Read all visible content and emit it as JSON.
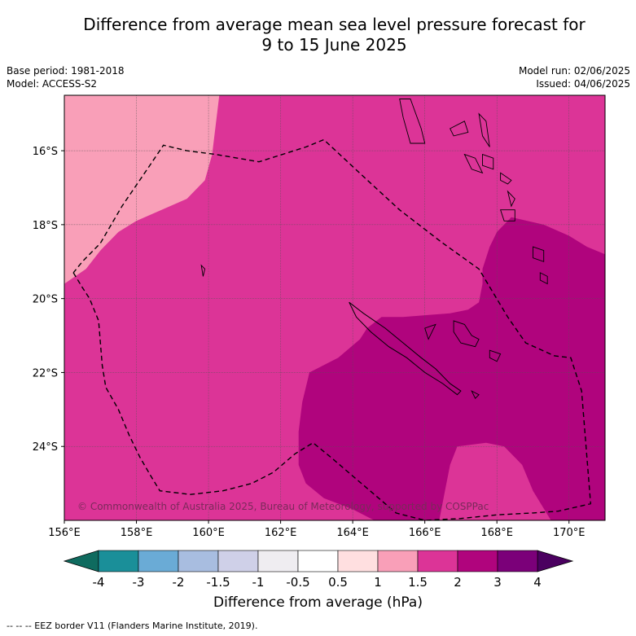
{
  "title_line1": "Difference from average mean sea level pressure forecast for",
  "title_line2": "9 to 15 June 2025",
  "meta": {
    "base_period": "Base period: 1981-2018",
    "model": "Model: ACCESS-S2",
    "model_run": "Model run: 02/06/2025",
    "issued": "Issued: 04/06/2025"
  },
  "map": {
    "lon_range": [
      156,
      171
    ],
    "lat_range": [
      -26.0,
      -14.5
    ],
    "lon_ticks": [
      {
        "v": 156,
        "label": "156°E"
      },
      {
        "v": 158,
        "label": "158°E"
      },
      {
        "v": 160,
        "label": "160°E"
      },
      {
        "v": 162,
        "label": "162°E"
      },
      {
        "v": 164,
        "label": "164°E"
      },
      {
        "v": 166,
        "label": "166°E"
      },
      {
        "v": 168,
        "label": "168°E"
      },
      {
        "v": 170,
        "label": "170°E"
      }
    ],
    "lat_ticks": [
      {
        "v": -16,
        "label": "16°S"
      },
      {
        "v": -18,
        "label": "18°S"
      },
      {
        "v": -20,
        "label": "20°S"
      },
      {
        "v": -22,
        "label": "22°S"
      },
      {
        "v": -24,
        "label": "24°S"
      }
    ],
    "gridlines": true,
    "copyright": "© Commonwealth of Australia 2025, Bureau of Meteorology, supported by COSPPac",
    "regions": [
      {
        "range": "1 to 1.5",
        "color": "#f99fb8",
        "points": [
          [
            156,
            -14.5
          ],
          [
            160.3,
            -14.5
          ],
          [
            160.1,
            -16.1
          ],
          [
            159.9,
            -16.8
          ],
          [
            159.4,
            -17.3
          ],
          [
            158.0,
            -17.9
          ],
          [
            157.5,
            -18.2
          ],
          [
            157.0,
            -18.7
          ],
          [
            156.6,
            -19.2
          ],
          [
            156,
            -19.6
          ]
        ]
      },
      {
        "range": "2 to 3",
        "color": "#b0047d",
        "points": [
          [
            168.4,
            -17.8
          ],
          [
            169.3,
            -18.0
          ],
          [
            170.0,
            -18.3
          ],
          [
            170.5,
            -18.6
          ],
          [
            171,
            -18.8
          ],
          [
            171,
            -26.0
          ],
          [
            169.5,
            -26.0
          ],
          [
            169.0,
            -25.2
          ],
          [
            168.7,
            -24.5
          ],
          [
            168.2,
            -24.0
          ],
          [
            167.7,
            -23.9
          ],
          [
            166.9,
            -24.0
          ],
          [
            166.7,
            -24.5
          ],
          [
            166.6,
            -25.0
          ],
          [
            166.5,
            -25.5
          ],
          [
            166.4,
            -26.0
          ],
          [
            164.6,
            -26.0
          ],
          [
            164.0,
            -25.7
          ],
          [
            163.2,
            -25.4
          ],
          [
            162.7,
            -25.0
          ],
          [
            162.5,
            -24.5
          ],
          [
            162.5,
            -23.6
          ],
          [
            162.6,
            -22.8
          ],
          [
            162.8,
            -22.0
          ],
          [
            163.6,
            -21.6
          ],
          [
            164.2,
            -21.1
          ],
          [
            164.4,
            -20.8
          ],
          [
            164.8,
            -20.5
          ],
          [
            165.4,
            -20.5
          ],
          [
            166.0,
            -20.45
          ],
          [
            166.7,
            -20.4
          ],
          [
            167.2,
            -20.3
          ],
          [
            167.5,
            -20.1
          ],
          [
            167.6,
            -19.6
          ],
          [
            167.6,
            -19.2
          ],
          [
            167.8,
            -18.6
          ],
          [
            168.0,
            -18.2
          ]
        ]
      }
    ],
    "eez_border": [
      [
        156.25,
        -19.3
      ],
      [
        156.5,
        -19.7
      ],
      [
        156.7,
        -20.0
      ],
      [
        156.95,
        -20.6
      ],
      [
        157.0,
        -21.2
      ],
      [
        157.05,
        -21.8
      ],
      [
        157.15,
        -22.4
      ],
      [
        157.5,
        -23.0
      ],
      [
        157.8,
        -23.7
      ],
      [
        158.1,
        -24.3
      ],
      [
        158.4,
        -24.8
      ],
      [
        158.65,
        -25.2
      ],
      [
        159.5,
        -25.3
      ],
      [
        160.4,
        -25.2
      ],
      [
        161.2,
        -25.0
      ],
      [
        161.8,
        -24.7
      ],
      [
        162.4,
        -24.2
      ],
      [
        162.9,
        -23.9
      ],
      [
        163.4,
        -24.3
      ],
      [
        164.0,
        -24.8
      ],
      [
        164.6,
        -25.3
      ],
      [
        165.2,
        -25.8
      ],
      [
        166.0,
        -26.0
      ],
      [
        167.0,
        -25.95
      ],
      [
        168.0,
        -25.85
      ],
      [
        169.0,
        -25.8
      ],
      [
        169.7,
        -25.75
      ],
      [
        170.6,
        -25.55
      ],
      [
        170.35,
        -22.5
      ],
      [
        170.05,
        -21.6
      ],
      [
        169.6,
        -21.55
      ],
      [
        168.8,
        -21.2
      ],
      [
        168.3,
        -20.5
      ],
      [
        167.5,
        -19.2
      ],
      [
        166.5,
        -18.5
      ],
      [
        165.3,
        -17.6
      ],
      [
        164.3,
        -16.7
      ],
      [
        163.2,
        -15.7
      ],
      [
        162.7,
        -15.9
      ],
      [
        161.4,
        -16.3
      ],
      [
        160.2,
        -16.1
      ],
      [
        159.4,
        -16.0
      ],
      [
        158.75,
        -15.85
      ],
      [
        158.3,
        -16.5
      ],
      [
        157.6,
        -17.5
      ],
      [
        157.0,
        -18.5
      ],
      [
        156.5,
        -19.0
      ],
      [
        156.25,
        -19.3
      ]
    ],
    "coast_new_caledonia": [
      [
        163.9,
        -20.1
      ],
      [
        164.3,
        -20.4
      ],
      [
        164.9,
        -20.8
      ],
      [
        165.4,
        -21.2
      ],
      [
        165.9,
        -21.6
      ],
      [
        166.3,
        -21.9
      ],
      [
        166.7,
        -22.3
      ],
      [
        167.0,
        -22.5
      ],
      [
        166.9,
        -22.6
      ],
      [
        166.5,
        -22.3
      ],
      [
        166.0,
        -22.0
      ],
      [
        165.5,
        -21.6
      ],
      [
        165.0,
        -21.3
      ],
      [
        164.5,
        -20.9
      ],
      [
        164.1,
        -20.5
      ],
      [
        163.9,
        -20.1
      ]
    ],
    "islands": [
      [
        [
          165.3,
          -14.6
        ],
        [
          165.6,
          -14.6
        ],
        [
          165.9,
          -15.4
        ],
        [
          166.0,
          -15.8
        ],
        [
          165.6,
          -15.8
        ],
        [
          165.4,
          -15.1
        ],
        [
          165.3,
          -14.6
        ]
      ],
      [
        [
          166.7,
          -15.4
        ],
        [
          167.1,
          -15.2
        ],
        [
          167.2,
          -15.5
        ],
        [
          166.8,
          -15.6
        ],
        [
          166.7,
          -15.4
        ]
      ],
      [
        [
          167.5,
          -15.0
        ],
        [
          167.7,
          -15.2
        ],
        [
          167.8,
          -15.9
        ],
        [
          167.6,
          -15.6
        ],
        [
          167.5,
          -15.0
        ]
      ],
      [
        [
          167.1,
          -16.1
        ],
        [
          167.4,
          -16.2
        ],
        [
          167.6,
          -16.6
        ],
        [
          167.3,
          -16.5
        ],
        [
          167.1,
          -16.1
        ]
      ],
      [
        [
          167.6,
          -16.1
        ],
        [
          167.9,
          -16.2
        ],
        [
          167.9,
          -16.5
        ],
        [
          167.6,
          -16.4
        ],
        [
          167.6,
          -16.1
        ]
      ],
      [
        [
          168.1,
          -16.6
        ],
        [
          168.4,
          -16.8
        ],
        [
          168.3,
          -16.9
        ],
        [
          168.1,
          -16.8
        ],
        [
          168.1,
          -16.6
        ]
      ],
      [
        [
          168.3,
          -17.1
        ],
        [
          168.5,
          -17.3
        ],
        [
          168.4,
          -17.5
        ],
        [
          168.3,
          -17.1
        ]
      ],
      [
        [
          168.1,
          -17.6
        ],
        [
          168.5,
          -17.6
        ],
        [
          168.5,
          -17.9
        ],
        [
          168.2,
          -17.9
        ],
        [
          168.1,
          -17.6
        ]
      ],
      [
        [
          169.0,
          -18.6
        ],
        [
          169.3,
          -18.7
        ],
        [
          169.3,
          -19.0
        ],
        [
          169.0,
          -18.9
        ],
        [
          169.0,
          -18.6
        ]
      ],
      [
        [
          169.2,
          -19.3
        ],
        [
          169.4,
          -19.4
        ],
        [
          169.4,
          -19.6
        ],
        [
          169.2,
          -19.5
        ],
        [
          169.2,
          -19.3
        ]
      ],
      [
        [
          166.8,
          -20.6
        ],
        [
          167.1,
          -20.7
        ],
        [
          167.3,
          -21.0
        ],
        [
          167.5,
          -21.1
        ],
        [
          167.4,
          -21.3
        ],
        [
          167.0,
          -21.2
        ],
        [
          166.8,
          -20.9
        ],
        [
          166.8,
          -20.6
        ]
      ],
      [
        [
          166.0,
          -20.8
        ],
        [
          166.3,
          -20.7
        ],
        [
          166.1,
          -21.1
        ],
        [
          166.0,
          -20.8
        ]
      ],
      [
        [
          167.8,
          -21.4
        ],
        [
          168.1,
          -21.5
        ],
        [
          168.0,
          -21.7
        ],
        [
          167.8,
          -21.6
        ],
        [
          167.8,
          -21.4
        ]
      ],
      [
        [
          167.3,
          -22.5
        ],
        [
          167.5,
          -22.6
        ],
        [
          167.4,
          -22.7
        ],
        [
          167.3,
          -22.5
        ]
      ],
      [
        [
          159.8,
          -19.1
        ],
        [
          159.9,
          -19.2
        ],
        [
          159.85,
          -19.4
        ],
        [
          159.8,
          -19.1
        ]
      ]
    ]
  },
  "colorbar": {
    "title": "Difference from average (hPa)",
    "boundaries": [
      "-4",
      "-3",
      "-2",
      "-1.5",
      "-1",
      "-0.5",
      "0.5",
      "1",
      "1.5",
      "2",
      "3",
      "4"
    ],
    "colors": [
      "#1a8f99",
      "#6aabd6",
      "#a8bde0",
      "#cfd0e8",
      "#efedf1",
      "#ffffff",
      "#ffdfe0",
      "#f99fb8",
      "#dc3497",
      "#b0047d",
      "#7b0079"
    ],
    "under_color": "#0f6b5f",
    "over_color": "#4b0060"
  },
  "footer": "--  --  -- EEZ border V11 (Flanders Marine Institute, 2019)."
}
